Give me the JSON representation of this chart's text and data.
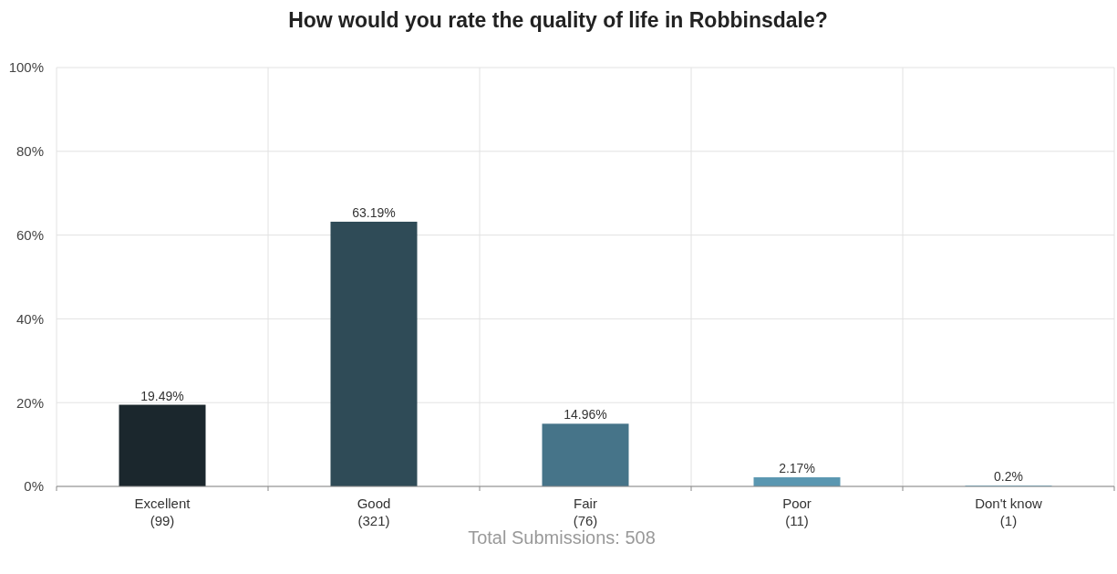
{
  "chart_data": {
    "type": "bar",
    "title": "How would you rate the quality of life in Robbinsdale?",
    "categories": [
      "Excellent\n(99)",
      "Good\n(321)",
      "Fair\n(76)",
      "Poor\n(11)",
      "Don't know\n(1)"
    ],
    "values": [
      19.49,
      63.19,
      14.96,
      2.17,
      0.2
    ],
    "value_labels": [
      "19.49%",
      "63.19%",
      "14.96%",
      "2.17%",
      "0.2%"
    ],
    "colors": [
      "#1b272d",
      "#2f4b57",
      "#467489",
      "#5a97b1",
      "#6cb0cf"
    ],
    "ylim": [
      0,
      100
    ],
    "yticks": [
      {
        "value": 0,
        "label": "0%"
      },
      {
        "value": 20,
        "label": "20%"
      },
      {
        "value": 40,
        "label": "40%"
      },
      {
        "value": 60,
        "label": "60%"
      },
      {
        "value": 80,
        "label": "80%"
      },
      {
        "value": 100,
        "label": "100%"
      }
    ],
    "grid": true,
    "annotations": [
      "Total Submissions: 508"
    ]
  }
}
